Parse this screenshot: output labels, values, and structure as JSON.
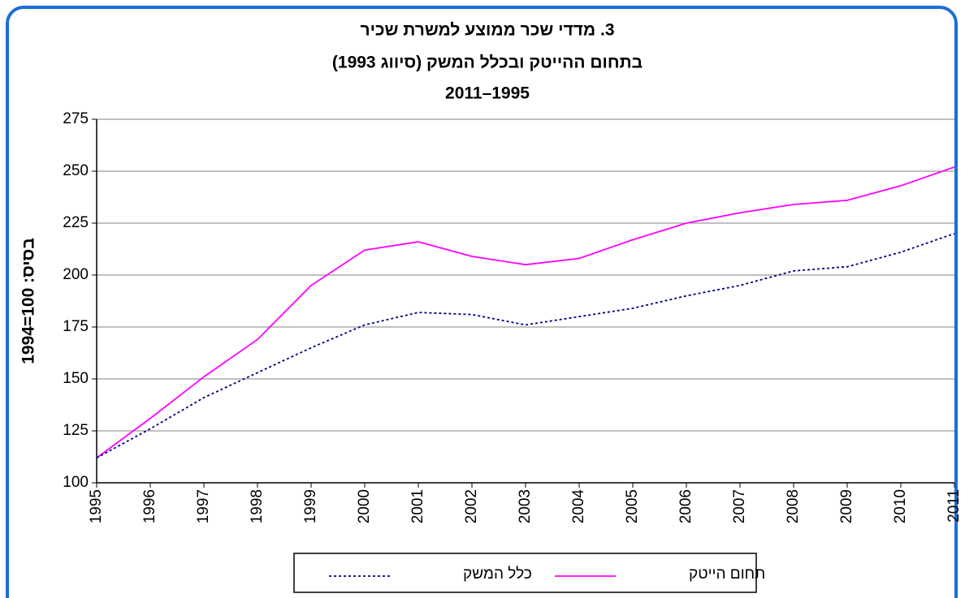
{
  "chart_data": {
    "type": "line",
    "title": "3. מדדי שכר ממוצע למשרת שכיר",
    "subtitle": "בתחום ההייטק ובכלל המשק (סיווג 1993)",
    "period": "2011–1995",
    "y_label": "בסיס: 100=1994",
    "categories": [
      "1995",
      "1996",
      "1997",
      "1998",
      "1999",
      "2000",
      "2001",
      "2002",
      "2003",
      "2004",
      "2005",
      "2006",
      "2007",
      "2008",
      "2009",
      "2010",
      "2011"
    ],
    "series": [
      {
        "name": "תחום הייטק",
        "color": "#ff00ff",
        "style": "solid",
        "values": [
          112,
          131,
          151,
          169,
          195,
          212,
          216,
          209,
          205,
          208,
          217,
          225,
          230,
          234,
          236,
          243,
          252
        ]
      },
      {
        "name": "כלל המשק",
        "color": "#000080",
        "style": "dotted",
        "values": [
          112,
          126,
          141,
          153,
          165,
          176,
          182,
          181,
          176,
          180,
          184,
          190,
          195,
          202,
          204,
          211,
          220
        ]
      }
    ],
    "ylim": [
      100,
      275
    ],
    "yticks": [
      100,
      125,
      150,
      175,
      200,
      225,
      250,
      275
    ],
    "grid": true
  }
}
